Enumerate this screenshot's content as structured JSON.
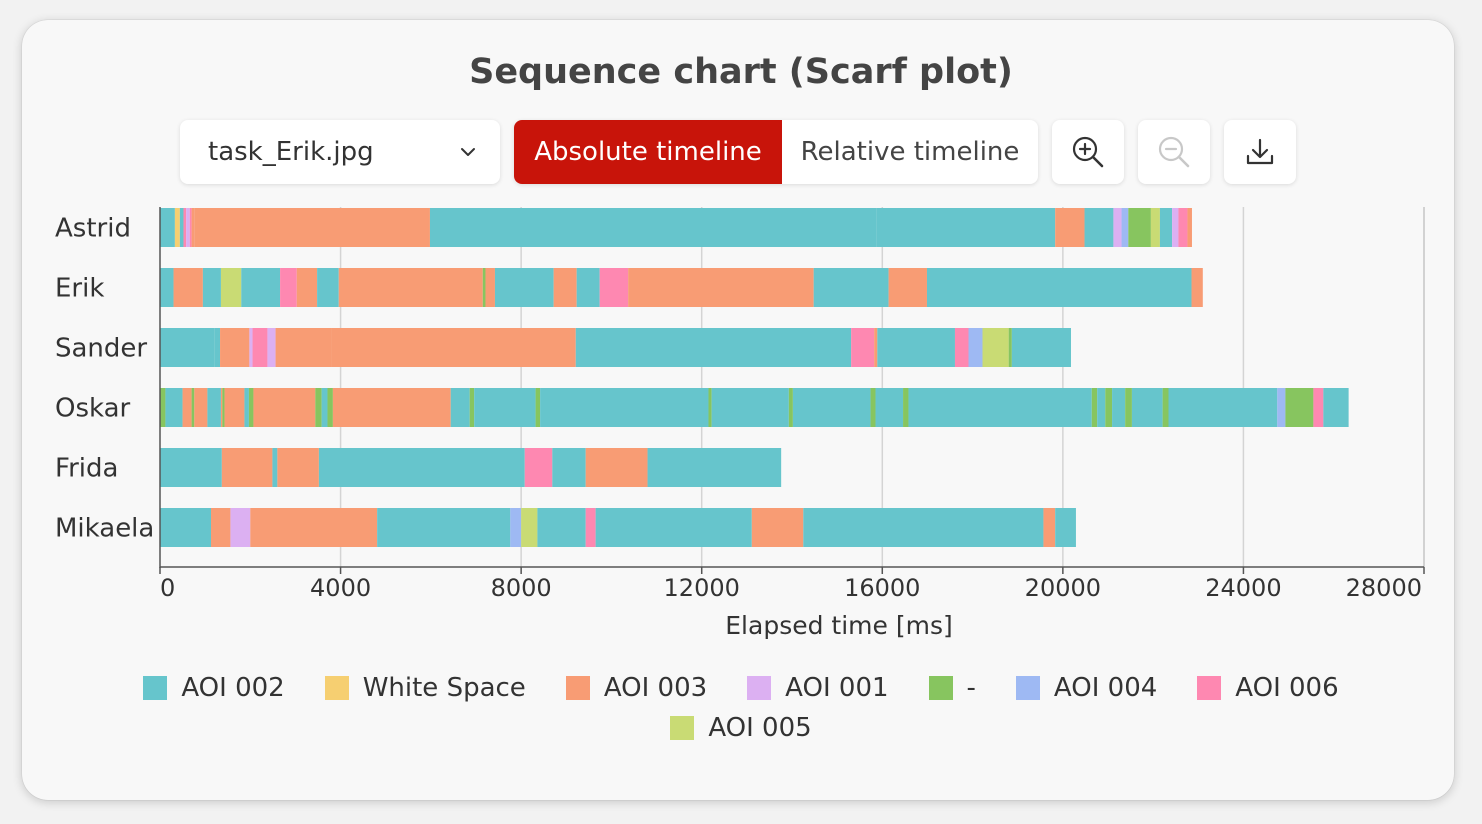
{
  "title": "Sequence chart (Scarf plot)",
  "select": {
    "value": "task_Erik.jpg"
  },
  "timeline_toggle": {
    "absolute_label": "Absolute timeline",
    "relative_label": "Relative timeline",
    "selected": "absolute"
  },
  "icons": {
    "zoom_in": "zoom-in-icon",
    "zoom_out": "zoom-out-icon",
    "download": "download-icon",
    "dropdown": "chevron-down-icon"
  },
  "colors": {
    "accent": "#c8140a"
  },
  "chart_data": {
    "type": "scarf",
    "xlabel": "Elapsed time [ms]",
    "xlim": [
      0,
      28000
    ],
    "xticks": [
      0,
      4000,
      8000,
      12000,
      16000,
      20000,
      24000,
      28000
    ],
    "xtick_labels": [
      "0",
      "4000",
      "8000",
      "12000",
      "16000",
      "20000",
      "24000",
      "28000"
    ],
    "grid": "vertical",
    "legend_position": "bottom",
    "aois": [
      {
        "key": "A2",
        "name": "AOI 002",
        "color": "#66c5cc"
      },
      {
        "key": "WS",
        "name": "White Space",
        "color": "#f6cf71"
      },
      {
        "key": "A3",
        "name": "AOI 003",
        "color": "#f89c74"
      },
      {
        "key": "A1",
        "name": "AOI 001",
        "color": "#dcb0f2"
      },
      {
        "key": "D",
        "name": "-",
        "color": "#87c55f"
      },
      {
        "key": "A4",
        "name": "AOI 004",
        "color": "#9eb9f3"
      },
      {
        "key": "A6",
        "name": "AOI 006",
        "color": "#fe88b1"
      },
      {
        "key": "A5",
        "name": "AOI 005",
        "color": "#c9db74"
      }
    ],
    "participants": [
      {
        "name": "Astrid",
        "segments": [
          [
            "A2",
            0,
            330
          ],
          [
            "WS",
            330,
            440
          ],
          [
            "A2",
            440,
            520
          ],
          [
            "A6",
            520,
            580
          ],
          [
            "A1",
            580,
            660
          ],
          [
            "A6",
            660,
            700
          ],
          [
            "A3",
            700,
            760
          ],
          [
            "A3",
            760,
            5980
          ],
          [
            "A2",
            5980,
            15880
          ],
          [
            "A2",
            15880,
            19830
          ],
          [
            "A3",
            19830,
            20480
          ],
          [
            "A2",
            20480,
            21120
          ],
          [
            "A1",
            21120,
            21300
          ],
          [
            "A4",
            21300,
            21450
          ],
          [
            "D",
            21450,
            21950
          ],
          [
            "A5",
            21950,
            22150
          ],
          [
            "A2",
            22150,
            22420
          ],
          [
            "A1",
            22420,
            22560
          ],
          [
            "A6",
            22560,
            22760
          ],
          [
            "A3",
            22760,
            22860
          ]
        ]
      },
      {
        "name": "Erik",
        "segments": [
          [
            "A2",
            0,
            300
          ],
          [
            "A3",
            300,
            950
          ],
          [
            "A2",
            950,
            1350
          ],
          [
            "A5",
            1350,
            1800
          ],
          [
            "A2",
            1800,
            2660
          ],
          [
            "A6",
            2660,
            3030
          ],
          [
            "A3",
            3030,
            3480
          ],
          [
            "A2",
            3480,
            3960
          ],
          [
            "A3",
            3960,
            7150
          ],
          [
            "D",
            7150,
            7210
          ],
          [
            "A3",
            7210,
            7420
          ],
          [
            "A2",
            7420,
            8720
          ],
          [
            "A3",
            8720,
            9230
          ],
          [
            "A2",
            9230,
            9740
          ],
          [
            "A6",
            9740,
            10370
          ],
          [
            "A3",
            10370,
            14480
          ],
          [
            "A2",
            14480,
            16140
          ],
          [
            "A3",
            16140,
            16990
          ],
          [
            "A2",
            16990,
            22850
          ],
          [
            "A3",
            22850,
            23100
          ]
        ]
      },
      {
        "name": "Sander",
        "segments": [
          [
            "A2",
            0,
            1200
          ],
          [
            "A2",
            1200,
            1330
          ],
          [
            "A3",
            1330,
            1980
          ],
          [
            "A1",
            1980,
            2050
          ],
          [
            "A6",
            2050,
            2380
          ],
          [
            "A1",
            2380,
            2560
          ],
          [
            "A3",
            2560,
            3800
          ],
          [
            "A3",
            3800,
            9210
          ],
          [
            "A2",
            9210,
            15310
          ],
          [
            "A6",
            15310,
            15820
          ],
          [
            "A3",
            15820,
            15890
          ],
          [
            "A2",
            15890,
            17610
          ],
          [
            "A6",
            17610,
            17910
          ],
          [
            "A4",
            17910,
            18220
          ],
          [
            "A5",
            18220,
            18800
          ],
          [
            "D",
            18800,
            18870
          ],
          [
            "A2",
            18870,
            20180
          ]
        ]
      },
      {
        "name": "Oskar",
        "segments": [
          [
            "D",
            0,
            120
          ],
          [
            "A2",
            120,
            500
          ],
          [
            "A3",
            500,
            700
          ],
          [
            "D",
            700,
            760
          ],
          [
            "A3",
            760,
            1050
          ],
          [
            "A2",
            1050,
            1350
          ],
          [
            "A3",
            1350,
            1380
          ],
          [
            "D",
            1380,
            1430
          ],
          [
            "A3",
            1430,
            1870
          ],
          [
            "A2",
            1870,
            1970
          ],
          [
            "D",
            1970,
            2070
          ],
          [
            "A3",
            2070,
            3440
          ],
          [
            "D",
            3440,
            3580
          ],
          [
            "A2",
            3580,
            3710
          ],
          [
            "D",
            3710,
            3830
          ],
          [
            "A3",
            3830,
            6440
          ],
          [
            "A2",
            6440,
            6860
          ],
          [
            "D",
            6860,
            6960
          ],
          [
            "A2",
            6960,
            8320
          ],
          [
            "D",
            8320,
            8420
          ],
          [
            "A2",
            8420,
            12150
          ],
          [
            "D",
            12150,
            12220
          ],
          [
            "A2",
            12220,
            13930
          ],
          [
            "D",
            13930,
            14020
          ],
          [
            "A2",
            14020,
            15740
          ],
          [
            "D",
            15740,
            15850
          ],
          [
            "A2",
            15850,
            16460
          ],
          [
            "D",
            16460,
            16580
          ],
          [
            "A2",
            16580,
            20640
          ],
          [
            "D",
            20640,
            20760
          ],
          [
            "A2",
            20760,
            20940
          ],
          [
            "D",
            20940,
            21090
          ],
          [
            "A2",
            21090,
            21380
          ],
          [
            "D",
            21380,
            21530
          ],
          [
            "A2",
            21530,
            22210
          ],
          [
            "D",
            22210,
            22340
          ],
          [
            "A2",
            22340,
            24750
          ],
          [
            "A4",
            24750,
            24930
          ],
          [
            "D",
            24930,
            25550
          ],
          [
            "A6",
            25550,
            25770
          ],
          [
            "A2",
            25770,
            26330
          ]
        ]
      },
      {
        "name": "Frida",
        "segments": [
          [
            "A2",
            0,
            1370
          ],
          [
            "A3",
            1370,
            2490
          ],
          [
            "A2",
            2490,
            2600
          ],
          [
            "A3",
            2600,
            3520
          ],
          [
            "A2",
            3520,
            8080
          ],
          [
            "A6",
            8080,
            8690
          ],
          [
            "A2",
            8690,
            9430
          ],
          [
            "A3",
            9430,
            10800
          ],
          [
            "A2",
            10800,
            13760
          ]
        ]
      },
      {
        "name": "Mikaela",
        "segments": [
          [
            "A2",
            0,
            1130
          ],
          [
            "A3",
            1130,
            1560
          ],
          [
            "A1",
            1560,
            2000
          ],
          [
            "A3",
            2000,
            4810
          ],
          [
            "A2",
            4810,
            7760
          ],
          [
            "A4",
            7760,
            8000
          ],
          [
            "A5",
            8000,
            8360
          ],
          [
            "A2",
            8360,
            9430
          ],
          [
            "A6",
            9430,
            9650
          ],
          [
            "A2",
            9650,
            13110
          ],
          [
            "A3",
            13110,
            14250
          ],
          [
            "A2",
            14250,
            19570
          ],
          [
            "A3",
            19570,
            19830
          ],
          [
            "A2",
            19830,
            20290
          ]
        ]
      }
    ]
  }
}
